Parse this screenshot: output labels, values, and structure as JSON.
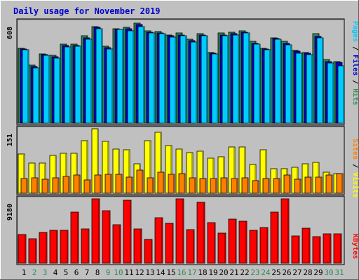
{
  "chart_data": {
    "type": "bar",
    "title": "Daily usage for November 2019",
    "categories": [
      "1",
      "2",
      "3",
      "4",
      "5",
      "6",
      "7",
      "8",
      "9",
      "10",
      "11",
      "12",
      "13",
      "14",
      "15",
      "16",
      "17",
      "18",
      "19",
      "20",
      "21",
      "22",
      "23",
      "24",
      "25",
      "26",
      "27",
      "28",
      "29",
      "30",
      "31"
    ],
    "weekend_days": [
      "2",
      "3",
      "9",
      "10",
      "16",
      "17",
      "23",
      "24",
      "30",
      "31"
    ],
    "panels": [
      {
        "id": "hits-files-pages",
        "scale_label": "608",
        "ymax": 608,
        "legend": [
          "Pages",
          "Files",
          "Hits"
        ],
        "series": [
          {
            "name": "Hits",
            "color": "#2E8B57",
            "values": [
              450,
              350,
              415,
              405,
              475,
              475,
              525,
              580,
              460,
              568,
              575,
              600,
              555,
              548,
              530,
              540,
              505,
              538,
              425,
              540,
              545,
              552,
              490,
              450,
              512,
              490,
              435,
              425,
              535,
              380,
              370
            ]
          },
          {
            "name": "Files",
            "color": "#0000CC",
            "values": [
              445,
              340,
              410,
              400,
              465,
              465,
              510,
              575,
              452,
              560,
              565,
              590,
              545,
              540,
              525,
              530,
              495,
              530,
              420,
              530,
              535,
              545,
              480,
              445,
              508,
              480,
              430,
              420,
              520,
              370,
              365
            ]
          },
          {
            "name": "Pages",
            "color": "#00CCFF",
            "values": [
              440,
              330,
              405,
              392,
              455,
              460,
              505,
              568,
              445,
              560,
              555,
              580,
              540,
              535,
              515,
              525,
              485,
              525,
              415,
              525,
              530,
              540,
              475,
              440,
              505,
              470,
              420,
              410,
              510,
              360,
              345
            ]
          }
        ]
      },
      {
        "id": "visits-sites",
        "scale_label": "151",
        "ymax": 151,
        "legend": [
          "Sites",
          "Visits"
        ],
        "series": [
          {
            "name": "Visits",
            "color": "#FFFF00",
            "values": [
              92,
              70,
              71,
              89,
              94,
              94,
              123,
              151,
              122,
              104,
              101,
              69,
              123,
              143,
              112,
              104,
              96,
              98,
              82,
              86,
              108,
              108,
              68,
              101,
              57,
              58,
              61,
              69,
              72,
              50,
              46
            ]
          },
          {
            "name": "Sites",
            "color": "#FF8000",
            "values": [
              34,
              36,
              33,
              36,
              40,
              43,
              32,
              42,
              45,
              44,
              38,
              54,
              36,
              50,
              45,
              46,
              36,
              35,
              35,
              36,
              34,
              36,
              30,
              35,
              35,
              43,
              33,
              38,
              38,
              42,
              46
            ]
          }
        ]
      },
      {
        "id": "kbytes",
        "scale_label": "9180",
        "ymax": 9180,
        "legend": [
          "KBytes"
        ],
        "series": [
          {
            "name": "KBytes",
            "color": "#FF0000",
            "values": [
              4050,
              3500,
              4350,
              4650,
              4650,
              7300,
              4850,
              9180,
              7500,
              5450,
              8950,
              4900,
              3350,
              6500,
              5700,
              9180,
              4800,
              8650,
              5800,
              4250,
              6300,
              6000,
              4700,
              5100,
              7300,
              9180,
              3900,
              4950,
              3800,
              4150,
              4150
            ]
          }
        ]
      }
    ]
  }
}
